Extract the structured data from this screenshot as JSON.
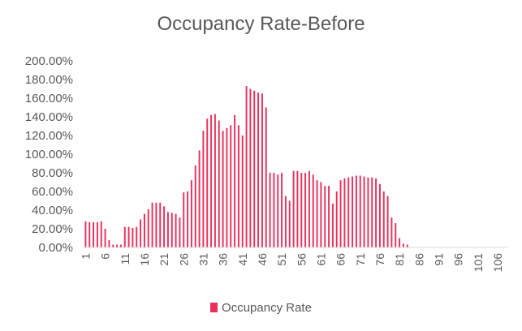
{
  "chart_data": {
    "type": "bar",
    "title": "Occupancy Rate-Before",
    "color": "#e8305b",
    "ylim": [
      0,
      200
    ],
    "yticks": [
      "0.00%",
      "20.00%",
      "40.00%",
      "60.00%",
      "80.00%",
      "100.00%",
      "120.00%",
      "140.00%",
      "160.00%",
      "180.00%",
      "200.00%"
    ],
    "xtick_labels": [
      "1",
      "6",
      "11",
      "16",
      "21",
      "26",
      "31",
      "36",
      "41",
      "46",
      "51",
      "56",
      "61",
      "66",
      "71",
      "76",
      "81",
      "86",
      "91",
      "96",
      "101",
      "106"
    ],
    "grid": false,
    "legend": "bottom",
    "series": [
      {
        "name": "Occupancy Rate",
        "categories": [
          1,
          2,
          3,
          4,
          5,
          6,
          7,
          8,
          9,
          10,
          11,
          12,
          13,
          14,
          15,
          16,
          17,
          18,
          19,
          20,
          21,
          22,
          23,
          24,
          25,
          26,
          27,
          28,
          29,
          30,
          31,
          32,
          33,
          34,
          35,
          36,
          37,
          38,
          39,
          40,
          41,
          42,
          43,
          44,
          45,
          46,
          47,
          48,
          49,
          50,
          51,
          52,
          53,
          54,
          55,
          56,
          57,
          58,
          59,
          60,
          61,
          62,
          63,
          64,
          65,
          66,
          67,
          68,
          69,
          70,
          71,
          72,
          73,
          74,
          75,
          76,
          77,
          78,
          79,
          80,
          81,
          82,
          83,
          84,
          85,
          86,
          87,
          88,
          89,
          90,
          91,
          92,
          93,
          94,
          95,
          96,
          97,
          98,
          99,
          100,
          101,
          102,
          103,
          104,
          105,
          106,
          107,
          108
        ],
        "values": [
          28,
          27,
          27,
          27,
          28,
          20,
          8,
          3,
          3,
          3,
          22,
          22,
          21,
          22,
          30,
          36,
          41,
          48,
          48,
          48,
          44,
          38,
          37,
          36,
          32,
          59,
          60,
          72,
          88,
          104,
          125,
          138,
          142,
          143,
          136,
          125,
          128,
          131,
          142,
          131,
          120,
          173,
          170,
          168,
          166,
          165,
          150,
          80,
          80,
          78,
          80,
          55,
          50,
          82,
          82,
          80,
          80,
          82,
          78,
          72,
          70,
          66,
          66,
          47,
          60,
          72,
          74,
          75,
          76,
          77,
          77,
          76,
          75,
          75,
          74,
          68,
          60,
          55,
          32,
          26,
          10,
          4,
          3,
          0,
          0,
          0,
          0,
          0,
          0,
          0,
          0,
          0,
          0,
          0,
          0,
          0,
          0,
          0,
          0,
          0,
          0,
          0,
          0,
          0,
          0,
          0,
          0,
          0
        ]
      }
    ]
  }
}
